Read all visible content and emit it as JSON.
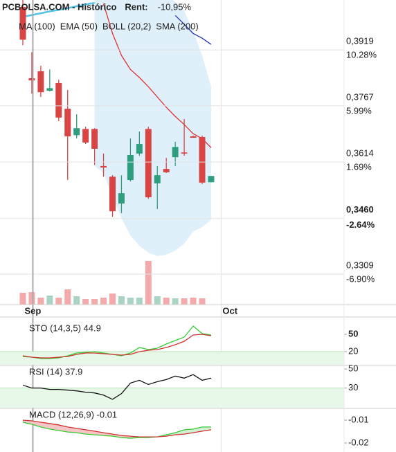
{
  "chart_data": [
    {
      "type": "candlestick",
      "title": "PCBOLSA.COM - Histórico",
      "return_label": "Rent:",
      "return_value": "-10,95%",
      "categories": [
        null,
        "Sep",
        null,
        null,
        null,
        null,
        null,
        null,
        null,
        null,
        null,
        null,
        null,
        null,
        null,
        null,
        null,
        null,
        null,
        null,
        null,
        null,
        "Oct"
      ],
      "open": [
        0.4036,
        0.3842,
        0.3861,
        0.3808,
        0.3829,
        0.3759,
        0.3687,
        0.3704,
        0.3704,
        0.3603,
        0.3574,
        0.3501,
        0.3565,
        0.3637,
        0.3704,
        0.3556,
        0.3595,
        0.3627,
        0.364,
        0.3684,
        0.3682,
        0.3559,
        null
      ],
      "high": [
        0.4055,
        0.3913,
        0.3876,
        0.3866,
        0.3838,
        0.381,
        0.3744,
        0.371,
        0.3706,
        0.3637,
        0.3578,
        0.3578,
        0.3678,
        0.3697,
        0.371,
        0.3603,
        0.3625,
        0.3669,
        0.3731,
        0.3686,
        0.3686,
        0.3576,
        null
      ],
      "low": [
        0.3932,
        0.38,
        0.3791,
        0.3806,
        0.3725,
        0.3565,
        0.3678,
        0.3663,
        0.3606,
        0.3574,
        0.3465,
        0.3475,
        0.3561,
        0.3631,
        0.3514,
        0.3486,
        0.3584,
        0.3603,
        0.3631,
        0.368,
        0.3554,
        0.3559,
        null
      ],
      "close": [
        0.3947,
        0.3836,
        0.3804,
        0.3815,
        0.3735,
        0.3684,
        0.3706,
        0.3667,
        0.365,
        0.3599,
        0.348,
        0.3529,
        0.3633,
        0.3663,
        0.3518,
        0.3578,
        0.3586,
        0.3655,
        0.3637,
        0.368,
        0.3558,
        0.3576,
        null
      ],
      "up_color": "#2e9e7e",
      "down_color": "#d94545",
      "volumes": [
        17,
        18,
        10,
        13,
        10,
        22,
        12,
        8,
        8,
        10,
        16,
        12,
        10,
        10,
        63,
        12,
        10,
        9,
        9,
        10,
        9,
        null,
        null
      ],
      "volume_ylim": [
        0,
        100
      ],
      "volume_up_color": "#a9d3c3",
      "volume_down_color": "#f4aaaa",
      "ylim": [
        0.3226,
        0.4055
      ],
      "yticks": [
        {
          "value": 0.3919,
          "label": "0,3919"
        },
        {
          "value": 0.3767,
          "label": "0,3767"
        },
        {
          "value": 0.3614,
          "label": "0,3614"
        },
        {
          "value": 0.3309,
          "label": "0,3309"
        }
      ],
      "ytick_changes": [
        "10.28%",
        "5.99%",
        "1.69%",
        "-6.90%"
      ],
      "last_price": {
        "value": 0.346,
        "label": "0,3460",
        "change": "-2.64%"
      },
      "grid": true,
      "band_color": "#dff0fb",
      "series": [
        {
          "name": "MA (100)",
          "color": "#4fc3e8",
          "values": [
            0.4009,
            0.4014,
            0.4019,
            0.4024,
            0.4028,
            0.4033,
            0.4038,
            0.4043,
            0.4047,
            null,
            null,
            null,
            null,
            null,
            null,
            null,
            null,
            null,
            null,
            null,
            null,
            null,
            null
          ]
        },
        {
          "name": "EMA (50)",
          "color": "#2233bb",
          "values": [
            null,
            null,
            null,
            null,
            null,
            null,
            null,
            null,
            null,
            null,
            null,
            null,
            null,
            null,
            null,
            null,
            null,
            0.4013,
            0.3989,
            0.3964,
            0.3951,
            0.3934,
            null
          ]
        },
        {
          "name": "BOLL (20,2)",
          "color": "#e03030",
          "values": [
            null,
            null,
            null,
            null,
            null,
            null,
            null,
            null,
            null,
            0.4045,
            0.3964,
            0.3904,
            0.3866,
            0.3844,
            0.3819,
            0.3791,
            0.3763,
            0.3738,
            0.3716,
            0.3691,
            0.3678,
            0.3653,
            null
          ],
          "upper": [
            null,
            null,
            null,
            null,
            null,
            null,
            null,
            null,
            0.42,
            0.42,
            0.419,
            0.417,
            0.415,
            0.413,
            0.411,
            0.409,
            0.407,
            0.405,
            0.4026,
            0.397,
            0.3904,
            0.3819,
            null
          ],
          "lower": [
            null,
            null,
            null,
            null,
            null,
            null,
            null,
            null,
            0.3603,
            0.3584,
            0.3518,
            0.3461,
            0.3414,
            0.3386,
            0.3367,
            0.3358,
            0.3362,
            0.3373,
            0.3392,
            0.3424,
            0.3437,
            0.3456,
            null
          ]
        },
        {
          "name": "SMA (200)",
          "color": "#e8c840",
          "values": [
            null,
            null,
            null,
            null,
            null,
            null,
            null,
            null,
            null,
            null,
            null,
            null,
            null,
            null,
            null,
            null,
            null,
            null,
            null,
            null,
            null,
            null,
            null
          ]
        }
      ]
    },
    {
      "type": "line",
      "title": "STO (14,3,5) 44.9",
      "ylim": [
        -2.8,
        80
      ],
      "yticks": [
        50,
        20
      ],
      "tick_colors": [
        "#111111",
        "#333333"
      ],
      "zone": true,
      "series": [
        {
          "color": "#33cc33",
          "values": [
            11.6,
            10.4,
            8,
            8,
            9.2,
            12.8,
            17.6,
            18.8,
            20,
            17.6,
            15.2,
            12.8,
            17.6,
            27.2,
            23.6,
            26,
            33.2,
            39.2,
            45.2,
            64.4,
            51.2,
            48.8
          ]
        },
        {
          "color": "#d03030",
          "values": [
            12.8,
            10.4,
            9.2,
            9.2,
            10.4,
            11.6,
            15.2,
            17.6,
            17.6,
            16.4,
            15.2,
            14,
            15.2,
            20,
            22.4,
            23.6,
            27.2,
            32,
            38,
            48.8,
            50,
            47.6
          ]
        }
      ]
    },
    {
      "type": "line",
      "title": "RSI (14) 37.9",
      "ylim": [
        9.3,
        53.7
      ],
      "yticks": [
        50,
        30
      ],
      "tick_colors": [
        "#333333",
        "#2e8b3e"
      ],
      "zone": true,
      "series": [
        {
          "color": "#111111",
          "values": [
            33.0,
            30,
            30,
            28.5,
            28.5,
            27.8,
            27.0,
            25.6,
            24.8,
            22.6,
            18.1,
            24.1,
            35.2,
            38.1,
            33.7,
            36.7,
            38.9,
            42.6,
            40.4,
            44.1,
            38.1,
            40.4
          ]
        }
      ]
    },
    {
      "type": "macd",
      "title": "MACD (12,26,9) -0.01",
      "ylim": [
        -0.02394,
        -0.00485
      ],
      "yticks": [
        -0.01,
        -0.02
      ],
      "tick_colors": [
        "#d03030",
        "#d03030"
      ],
      "zone": false,
      "above_color": "#d4f0d4",
      "below_color": "#f6c6c6",
      "series": [
        {
          "color": "#33cc33",
          "values": [
            -0.0109,
            -0.0118,
            -0.013,
            -0.0139,
            -0.0145,
            -0.0152,
            -0.0155,
            -0.0161,
            -0.0164,
            -0.0167,
            -0.017,
            -0.0176,
            -0.0179,
            -0.0176,
            -0.0176,
            -0.0173,
            -0.0164,
            -0.0155,
            -0.0142,
            -0.0139,
            -0.013,
            -0.013
          ]
        },
        {
          "color": "#d03030",
          "values": [
            -0.01,
            -0.0103,
            -0.0109,
            -0.0115,
            -0.0121,
            -0.013,
            -0.0136,
            -0.0142,
            -0.0148,
            -0.0155,
            -0.0161,
            -0.0167,
            -0.017,
            -0.0173,
            -0.0173,
            -0.0173,
            -0.017,
            -0.0164,
            -0.0161,
            -0.0155,
            -0.0148,
            -0.0142
          ]
        }
      ]
    }
  ]
}
